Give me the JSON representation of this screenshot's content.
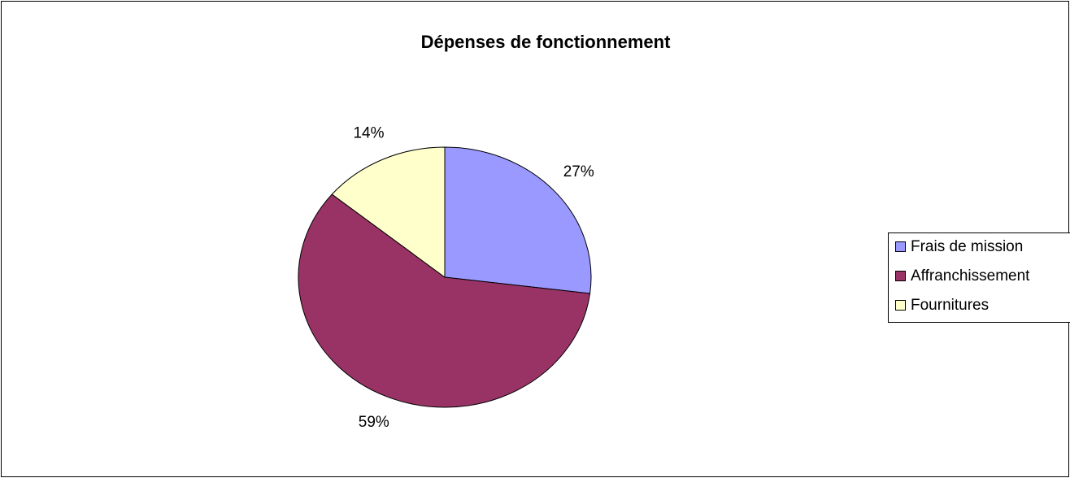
{
  "chart_data": {
    "type": "pie",
    "title": "Dépenses de fonctionnement",
    "categories": [
      "Frais de mission",
      "Affranchissement",
      "Fournitures"
    ],
    "values": [
      27,
      59,
      14
    ],
    "value_labels": [
      "27%",
      "59%",
      "14%"
    ],
    "colors": [
      "#9999ff",
      "#993366",
      "#ffffcc"
    ],
    "legend": "right"
  }
}
